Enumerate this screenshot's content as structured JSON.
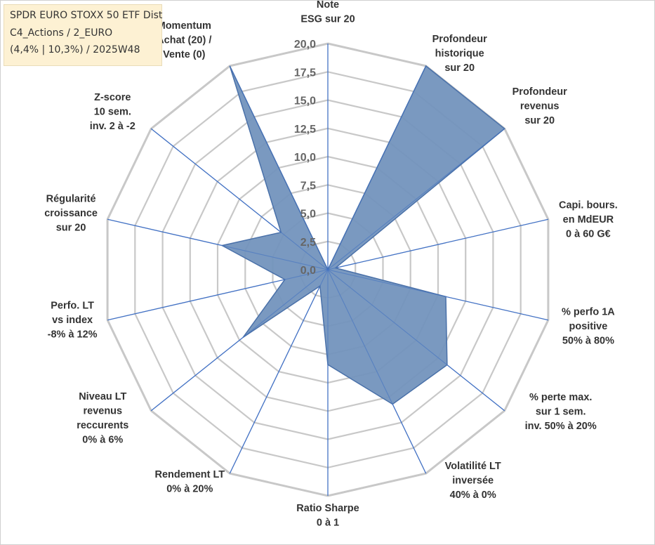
{
  "info": {
    "line1": "SPDR EURO STOXX 50 ETF Dist",
    "line2": "C4_Actions / 2_EURO",
    "line3": "(4,4% | 10,3%) / 2025W48"
  },
  "chart_data": {
    "type": "radar",
    "rmax": 20,
    "ticks": [
      "0,0",
      "2,5",
      "5,0",
      "7,5",
      "10,0",
      "12,5",
      "15,0",
      "17,5",
      "20,0"
    ],
    "grid": true,
    "colors": {
      "fill": "#7393bd",
      "stroke": "#4a71a9",
      "grid": "#c8c8c8",
      "axis": "#4472c4"
    },
    "categories": [
      [
        "Note",
        "ESG sur 20"
      ],
      [
        "Profondeur",
        "historique",
        "sur 20"
      ],
      [
        "Profondeur",
        "revenus",
        "sur 20"
      ],
      [
        "Capi. bours.",
        "en MdEUR",
        "0 à 60 G€"
      ],
      [
        "% perfo 1A",
        "positive",
        "50% à 80%"
      ],
      [
        "% perte max.",
        "sur 1 sem.",
        "inv. 50% à 20%"
      ],
      [
        "Volatilité LT",
        "inversée",
        "40% à 0%"
      ],
      [
        "Ratio Sharpe",
        "0 à 1"
      ],
      [
        "Rendement LT",
        "0% à 20%"
      ],
      [
        "Niveau LT",
        "revenus",
        "reccurents",
        "0% à 6%"
      ],
      [
        "Perfo. LT",
        "vs index",
        "-8% à 12%"
      ],
      [
        "Régularité",
        "croissance",
        "sur 20"
      ],
      [
        "Z-score",
        "10 sem.",
        "inv. 2 à -2"
      ],
      [
        "Momentum",
        "Achat (20) /",
        "Vente (0)"
      ]
    ],
    "values": [
      0,
      20,
      20,
      0.7,
      10.7,
      13.5,
      13.2,
      8.4,
      1.6,
      9.6,
      3.9,
      9.6,
      5.3,
      20
    ]
  }
}
